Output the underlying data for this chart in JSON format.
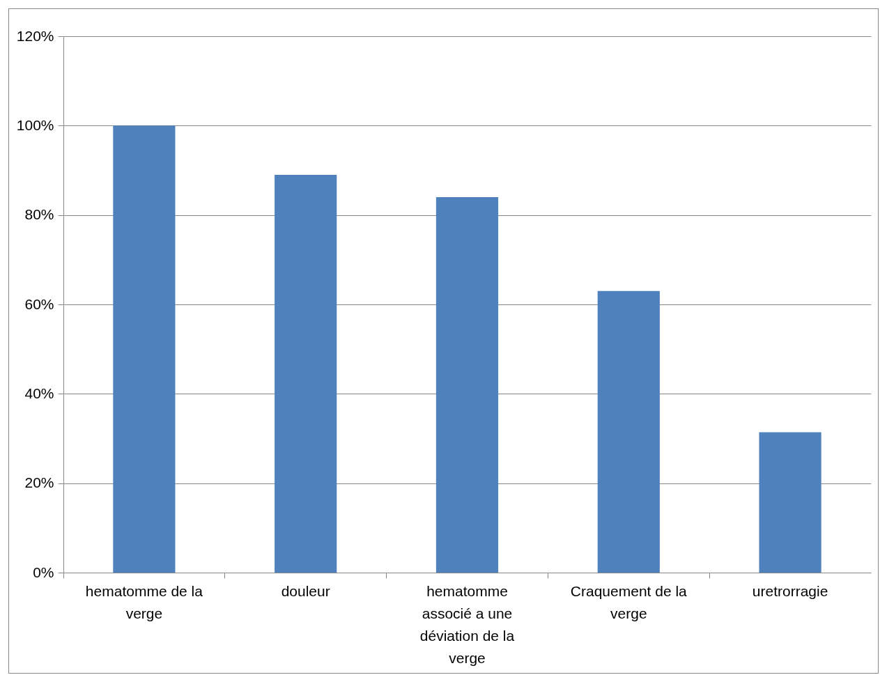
{
  "chart_data": {
    "type": "bar",
    "categories": [
      "hematomme de la verge",
      "douleur",
      "hematomme associé a une déviation de la verge",
      "Craquement de la verge",
      "uretrorragie"
    ],
    "values": [
      100,
      89,
      84,
      63,
      31.4
    ],
    "color": "#4f81bd",
    "ylim": [
      0,
      120
    ],
    "yticks": [
      {
        "value": 0,
        "label": "0%"
      },
      {
        "value": 20,
        "label": "20%"
      },
      {
        "value": 40,
        "label": "40%"
      },
      {
        "value": 60,
        "label": "60%"
      },
      {
        "value": 80,
        "label": "80%"
      },
      {
        "value": 100,
        "label": "100%"
      },
      {
        "value": 120,
        "label": "120%"
      }
    ],
    "grid": "y"
  }
}
